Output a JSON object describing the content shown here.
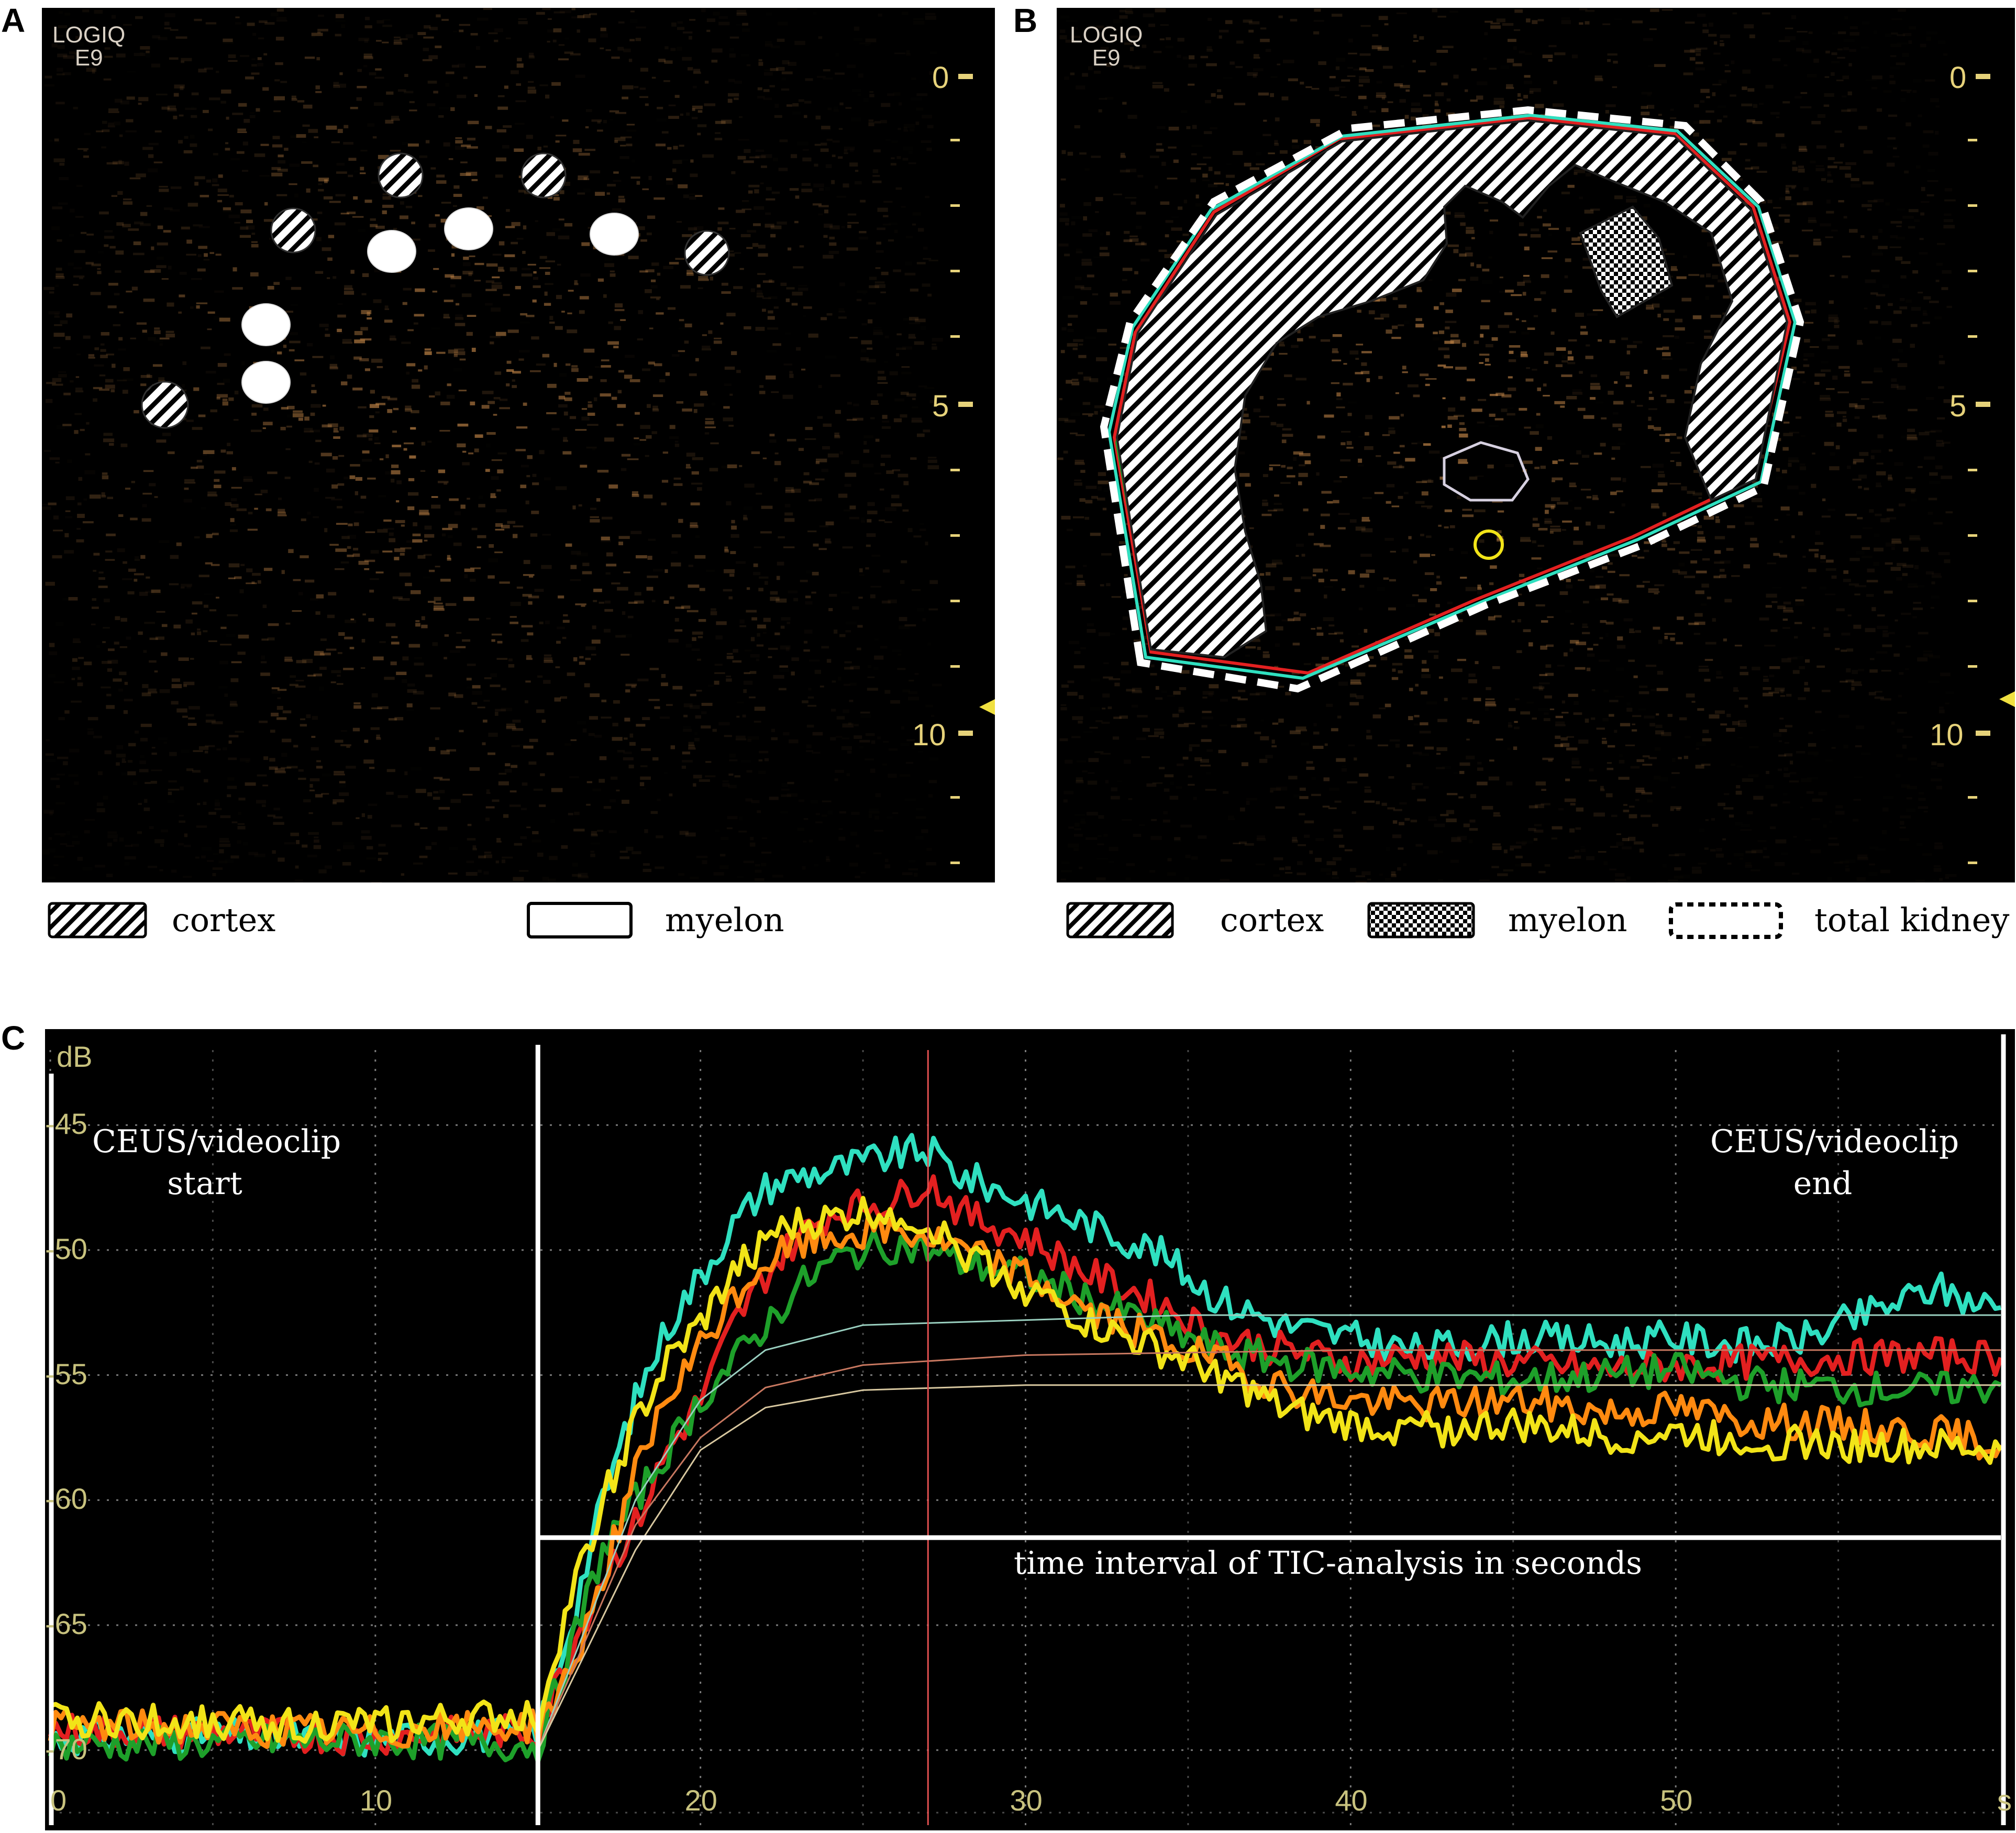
{
  "panels": {
    "A": {
      "letter": "A",
      "brand_line1": "LOGIQ",
      "brand_line2": "E9",
      "depth_ticks": [
        "0",
        "5",
        "10"
      ],
      "legend": [
        {
          "label": "cortex",
          "pattern": "hatch"
        },
        {
          "label": "myelon",
          "pattern": "solid-white"
        }
      ]
    },
    "B": {
      "letter": "B",
      "brand_line1": "LOGIQ",
      "brand_line2": "E9",
      "depth_ticks": [
        "0",
        "5",
        "10"
      ],
      "legend": [
        {
          "label": "cortex",
          "pattern": "hatch"
        },
        {
          "label": "myelon",
          "pattern": "checker"
        },
        {
          "label": "total kidney",
          "pattern": "dashed"
        }
      ]
    },
    "C": {
      "letter": "C"
    }
  },
  "colors": {
    "ultrasound_speckle": "#c98a4a",
    "cyan": "#2fe0c0",
    "red": "#e32020",
    "green": "#1ea02a",
    "orange": "#ff8a10",
    "yellow": "#f2e418",
    "axis_label": "#c8c27e"
  },
  "chart_data": {
    "type": "line",
    "ylabel": "dB",
    "xlim": [
      0,
      60
    ],
    "ylim": [
      -73,
      -42
    ],
    "yticks": [
      -45,
      -50,
      -55,
      -60,
      -65,
      -70
    ],
    "xticks": [
      0,
      10,
      20,
      30,
      40,
      50
    ],
    "x_unit_label": "s",
    "grid": true,
    "annotations": {
      "start": [
        "CEUS/videoclip",
        "start"
      ],
      "end": [
        "CEUS/videoclip",
        "end"
      ],
      "interval": "time interval of TIC-analysis in seconds"
    },
    "markers": {
      "clip_start_x": 15,
      "peak_x": 27,
      "interval_y": -61.5
    },
    "series": [
      {
        "color": "#2fe0c0",
        "x": [
          0,
          5,
          10,
          15,
          16,
          17,
          18,
          19,
          20,
          21,
          22,
          23,
          24,
          25,
          26,
          27,
          28,
          29,
          30,
          31,
          32,
          33,
          34,
          35,
          36,
          37,
          38,
          40,
          42,
          45,
          48,
          50,
          52,
          54,
          55,
          56,
          57,
          58,
          59,
          60
        ],
        "y": [
          -69.5,
          -69.4,
          -69.6,
          -69.3,
          -65,
          -60,
          -56,
          -53,
          -51,
          -49,
          -47.5,
          -47,
          -46.8,
          -46.5,
          -46.2,
          -46,
          -47,
          -47.5,
          -48,
          -48.5,
          -49,
          -49.5,
          -50,
          -51,
          -52,
          -52.5,
          -53,
          -53.5,
          -54,
          -53.5,
          -53.7,
          -53.5,
          -53.8,
          -53.5,
          -53.0,
          -52.5,
          -52.0,
          -51.5,
          -52,
          -52.3
        ]
      },
      {
        "color": "#e32020",
        "x": [
          0,
          5,
          10,
          15,
          16,
          17,
          18,
          19,
          20,
          21,
          22,
          23,
          24,
          25,
          26,
          27,
          28,
          29,
          30,
          32,
          34,
          36,
          38,
          40,
          42,
          45,
          48,
          50,
          52,
          55,
          58,
          60
        ],
        "y": [
          -69.2,
          -69.3,
          -69.5,
          -69.2,
          -66,
          -63,
          -61,
          -58,
          -56,
          -53,
          -51,
          -49.5,
          -48.5,
          -48.2,
          -48,
          -47.2,
          -48.5,
          -49,
          -49.5,
          -51,
          -52,
          -53.5,
          -54,
          -54.5,
          -54.2,
          -54.5,
          -54.8,
          -54.6,
          -54.5,
          -54.3,
          -54.2,
          -54.3
        ]
      },
      {
        "color": "#1ea02a",
        "x": [
          0,
          5,
          10,
          15,
          16,
          17,
          18,
          19,
          20,
          21,
          22,
          23,
          24,
          25,
          26,
          27,
          28,
          30,
          32,
          34,
          36,
          38,
          40,
          42,
          45,
          48,
          50,
          52,
          55,
          58,
          60
        ],
        "y": [
          -69.8,
          -69.7,
          -69.6,
          -69.8,
          -66,
          -62,
          -60,
          -58,
          -56,
          -54.5,
          -53,
          -51.5,
          -50.5,
          -50,
          -49.8,
          -50,
          -50.5,
          -51,
          -52,
          -53,
          -54,
          -54.5,
          -54.8,
          -55,
          -55.2,
          -55,
          -54.8,
          -55.3,
          -55.5,
          -55.6,
          -55.4
        ]
      },
      {
        "color": "#ff8a10",
        "x": [
          0,
          5,
          10,
          15,
          16,
          17,
          18,
          19,
          20,
          21,
          22,
          23,
          24,
          25,
          26,
          27,
          28,
          30,
          32,
          34,
          36,
          38,
          40,
          42,
          45,
          48,
          50,
          52,
          55,
          58,
          60
        ],
        "y": [
          -69.0,
          -69.1,
          -69.3,
          -69.0,
          -67,
          -63,
          -59,
          -56,
          -54,
          -52,
          -50.5,
          -49.8,
          -49.5,
          -49.3,
          -49.2,
          -49.5,
          -50,
          -51,
          -52.5,
          -53.5,
          -54.5,
          -55.5,
          -56,
          -56.2,
          -56,
          -56.5,
          -56.3,
          -56.8,
          -57,
          -57.3,
          -57.8
        ]
      },
      {
        "color": "#f2e418",
        "x": [
          0,
          5,
          10,
          15,
          16,
          17,
          18,
          19,
          20,
          21,
          22,
          23,
          24,
          25,
          26,
          27,
          28,
          30,
          32,
          34,
          36,
          38,
          40,
          42,
          45,
          48,
          50,
          52,
          55,
          58,
          60
        ],
        "y": [
          -68.8,
          -68.9,
          -69.0,
          -68.6,
          -64,
          -60,
          -57,
          -54.5,
          -53,
          -51,
          -49.5,
          -49,
          -48.8,
          -48.5,
          -48.5,
          -49,
          -50,
          -51.5,
          -53,
          -54,
          -55,
          -56.5,
          -57,
          -57.2,
          -57,
          -57.5,
          -57.3,
          -57.6,
          -57.8,
          -57.9,
          -58
        ]
      },
      {
        "color": "#9ad0c0",
        "x": [
          15,
          18,
          20,
          22,
          25,
          30,
          35,
          40,
          45,
          50,
          55,
          60
        ],
        "y": [
          -70,
          -60,
          -56,
          -54,
          -53,
          -52.8,
          -52.6,
          -52.6,
          -52.6,
          -52.6,
          -52.6,
          -52.6
        ]
      },
      {
        "color": "#c87860",
        "x": [
          15,
          18,
          20,
          22,
          25,
          30,
          35,
          40,
          45,
          50,
          55,
          60
        ],
        "y": [
          -70,
          -61,
          -57.5,
          -55.5,
          -54.6,
          -54.2,
          -54.1,
          -54,
          -54,
          -54,
          -54,
          -54
        ]
      },
      {
        "color": "#d8c8a0",
        "x": [
          15,
          18,
          20,
          22,
          25,
          30,
          35,
          40,
          45,
          50,
          55,
          60
        ],
        "y": [
          -70,
          -62,
          -58,
          -56.3,
          -55.6,
          -55.4,
          -55.4,
          -55.4,
          -55.4,
          -55.4,
          -55.4,
          -55.4
        ]
      }
    ]
  }
}
